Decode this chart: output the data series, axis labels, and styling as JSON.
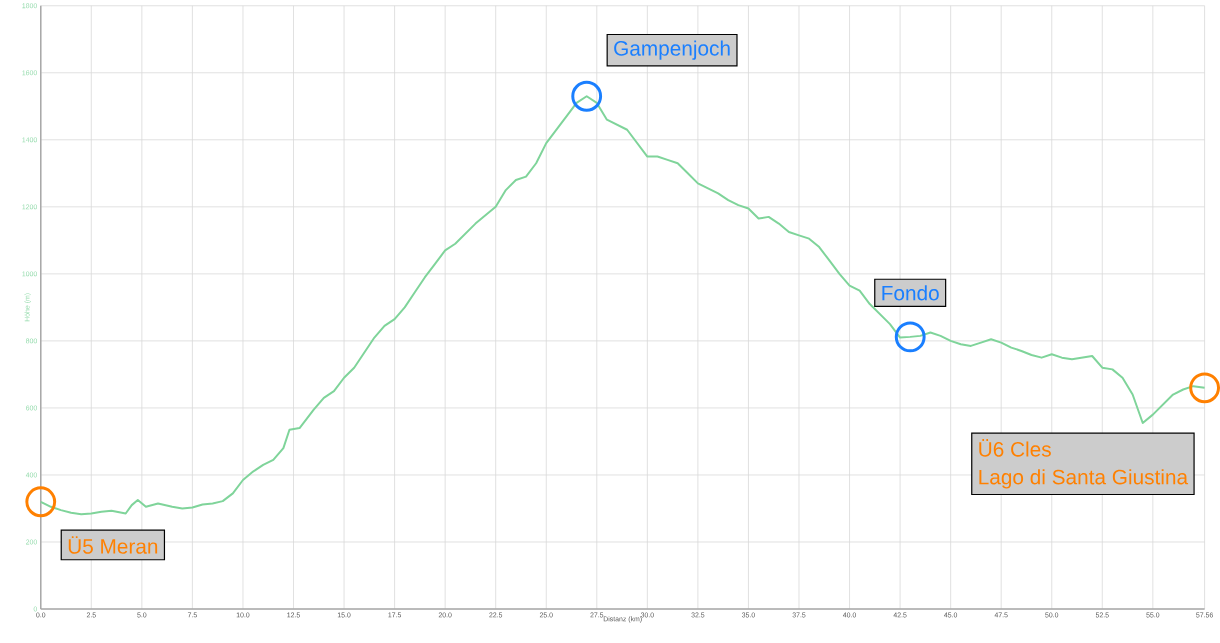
{
  "chart_data": {
    "type": "line",
    "xlabel": "Distanz (km)",
    "ylabel": "Höhe (m)",
    "x": [
      0,
      0.5,
      1,
      1.5,
      2,
      2.5,
      3,
      3.5,
      4.2,
      4.5,
      4.8,
      5.2,
      5.8,
      6.5,
      7,
      7.5,
      8,
      8.5,
      9,
      9.5,
      10,
      10.5,
      11,
      11.5,
      12,
      12.3,
      12.8,
      13.5,
      14,
      14.5,
      15,
      15.5,
      16,
      16.5,
      17,
      17.5,
      18,
      18.5,
      19,
      19.5,
      20,
      20.5,
      21,
      21.5,
      22,
      22.5,
      23,
      23.5,
      24,
      24.5,
      25,
      25.5,
      26,
      26.5,
      27,
      27.5,
      28,
      28.5,
      29,
      29.5,
      30,
      30.5,
      31,
      31.5,
      32,
      32.5,
      33,
      33.5,
      34,
      34.5,
      35,
      35.5,
      36,
      36.5,
      37,
      37.5,
      38,
      38.5,
      39,
      39.5,
      40,
      40.5,
      41,
      41.5,
      42,
      42.5,
      43,
      43.5,
      44,
      44.5,
      45,
      45.5,
      46,
      46.5,
      47,
      47.5,
      48,
      48.5,
      49,
      49.5,
      50,
      50.5,
      51,
      51.5,
      52,
      52.5,
      53,
      53.5,
      54,
      54.5,
      55,
      55.5,
      56,
      56.5,
      57,
      57.56
    ],
    "series": [
      {
        "color": "#7fd49a",
        "values": [
          320,
          305,
          295,
          287,
          283,
          285,
          290,
          293,
          285,
          310,
          325,
          305,
          315,
          305,
          300,
          303,
          312,
          315,
          322,
          345,
          385,
          410,
          430,
          445,
          480,
          535,
          540,
          595,
          630,
          650,
          690,
          720,
          765,
          810,
          845,
          865,
          900,
          945,
          990,
          1030,
          1070,
          1090,
          1120,
          1150,
          1175,
          1200,
          1250,
          1280,
          1290,
          1330,
          1390,
          1430,
          1470,
          1510,
          1530,
          1510,
          1460,
          1445,
          1430,
          1390,
          1350,
          1350,
          1340,
          1330,
          1300,
          1270,
          1255,
          1240,
          1220,
          1205,
          1195,
          1165,
          1170,
          1150,
          1125,
          1115,
          1105,
          1080,
          1040,
          1000,
          965,
          950,
          910,
          880,
          850,
          810,
          812,
          815,
          825,
          815,
          800,
          790,
          785,
          795,
          805,
          795,
          780,
          770,
          758,
          750,
          760,
          750,
          745,
          750,
          755,
          720,
          715,
          690,
          640,
          555,
          580,
          610,
          640,
          655,
          665,
          660
        ]
      }
    ],
    "xlim": [
      0,
      57.56
    ],
    "ylim": [
      0,
      1800
    ],
    "xticks": [
      {
        "value": 0,
        "label": "0.0"
      },
      {
        "value": 2.5,
        "label": "2.5"
      },
      {
        "value": 5,
        "label": "5.0"
      },
      {
        "value": 7.5,
        "label": "7.5"
      },
      {
        "value": 10,
        "label": "10.0"
      },
      {
        "value": 12.5,
        "label": "12.5"
      },
      {
        "value": 15,
        "label": "15.0"
      },
      {
        "value": 17.5,
        "label": "17.5"
      },
      {
        "value": 20,
        "label": "20.0"
      },
      {
        "value": 22.5,
        "label": "22.5"
      },
      {
        "value": 25,
        "label": "25.0"
      },
      {
        "value": 27.5,
        "label": "27.5"
      },
      {
        "value": 30,
        "label": "30.0"
      },
      {
        "value": 32.5,
        "label": "32.5"
      },
      {
        "value": 35,
        "label": "35.0"
      },
      {
        "value": 37.5,
        "label": "37.5"
      },
      {
        "value": 40,
        "label": "40.0"
      },
      {
        "value": 42.5,
        "label": "42.5"
      },
      {
        "value": 45,
        "label": "45.0"
      },
      {
        "value": 47.5,
        "label": "47.5"
      },
      {
        "value": 50,
        "label": "50.0"
      },
      {
        "value": 52.5,
        "label": "52.5"
      },
      {
        "value": 55,
        "label": "55.0"
      },
      {
        "value": 57.56,
        "label": "57.56"
      }
    ],
    "yticks": [
      0,
      200,
      400,
      600,
      800,
      1000,
      1200,
      1400,
      1600,
      1800
    ],
    "grid": true,
    "marker": "none",
    "line_style": "solid",
    "annotations": [
      {
        "text": "Ü5 Meran",
        "x": 0,
        "y": 320
      },
      {
        "text": "Gampenjoch",
        "x": 27,
        "y": 1530
      },
      {
        "text": "Fondo",
        "x": 43,
        "y": 812
      },
      {
        "text": "Ü6 Cles\nLago di Santa Giustina",
        "x": 57.56,
        "y": 660
      }
    ]
  }
}
